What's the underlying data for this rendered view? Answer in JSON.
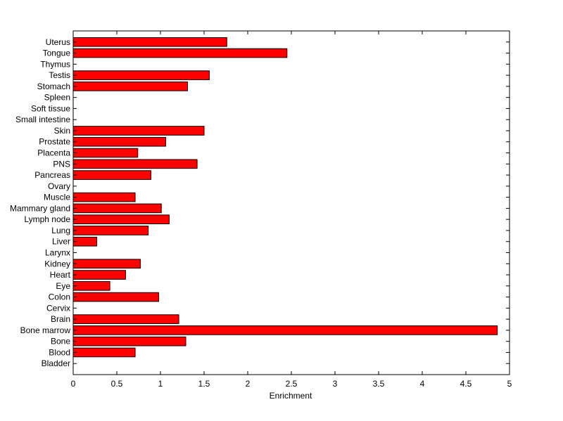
{
  "chart_data": {
    "type": "bar",
    "orientation": "horizontal",
    "xlabel": "Enrichment",
    "ylabel": "",
    "title": "",
    "xlim": [
      0,
      5
    ],
    "xticks": [
      0,
      0.5,
      1,
      1.5,
      2,
      2.5,
      3,
      3.5,
      4,
      4.5,
      5
    ],
    "xtick_labels": [
      "0",
      "0.5",
      "1",
      "1.5",
      "2",
      "2.5",
      "3",
      "3.5",
      "4",
      "4.5",
      "5"
    ],
    "grid": false,
    "bar_color": "#ff0000",
    "bar_edge_color": "#000000",
    "categories": [
      "Bladder",
      "Blood",
      "Bone",
      "Bone marrow",
      "Brain",
      "Cervix",
      "Colon",
      "Eye",
      "Heart",
      "Kidney",
      "Larynx",
      "Liver",
      "Lung",
      "Lymph node",
      "Mammary gland",
      "Muscle",
      "Ovary",
      "Pancreas",
      "PNS",
      "Placenta",
      "Prostate",
      "Skin",
      "Small intestine",
      "Soft tissue",
      "Spleen",
      "Stomach",
      "Testis",
      "Thymus",
      "Tongue",
      "Uterus"
    ],
    "values": [
      0,
      0.71,
      1.29,
      4.86,
      1.21,
      0,
      0.98,
      0.42,
      0.6,
      0.77,
      0,
      0.27,
      0.86,
      1.1,
      1.01,
      0.71,
      0,
      0.89,
      1.42,
      0.74,
      1.06,
      1.5,
      0,
      0,
      0,
      1.31,
      1.56,
      0,
      2.45,
      1.76
    ]
  }
}
